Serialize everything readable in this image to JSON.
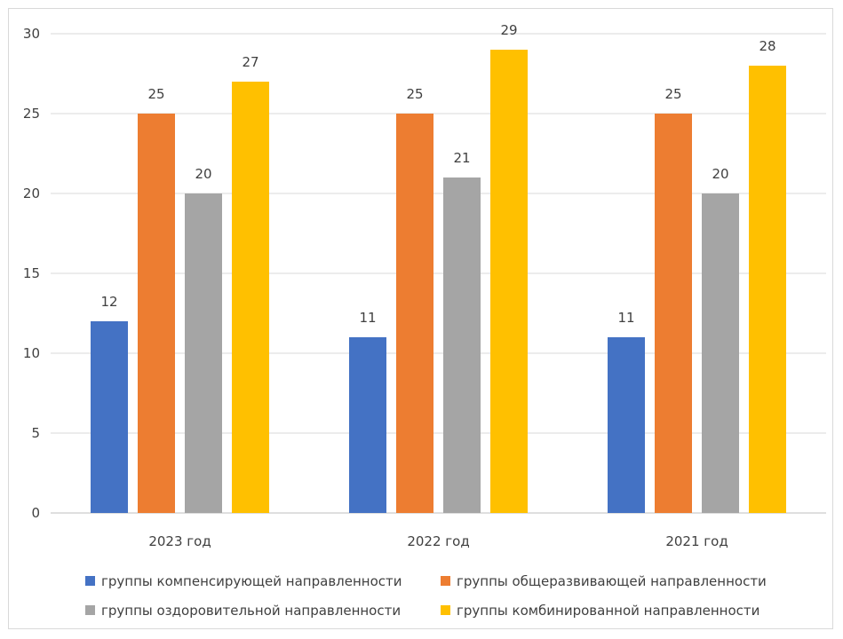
{
  "chart_data": {
    "type": "bar",
    "title": "",
    "xlabel": "",
    "ylabel": "",
    "categories": [
      "2023 год",
      "2022 год",
      "2021 год"
    ],
    "series": [
      {
        "name": "группы компенсирующей направленности",
        "color": "#4472c4",
        "values": [
          12,
          11,
          11
        ]
      },
      {
        "name": "группы общеразвивающей направленности",
        "color": "#ed7d31",
        "values": [
          25,
          25,
          25
        ]
      },
      {
        "name": "группы оздоровительной направленности",
        "color": "#a5a5a5",
        "values": [
          20,
          21,
          20
        ]
      },
      {
        "name": "группы комбинированной направленности",
        "color": "#ffc000",
        "values": [
          27,
          29,
          28
        ]
      }
    ],
    "ylim": [
      0,
      30
    ],
    "yticks": [
      0,
      5,
      10,
      15,
      20,
      25,
      30
    ],
    "grid": true,
    "data_labels": true,
    "legend_position": "bottom"
  }
}
